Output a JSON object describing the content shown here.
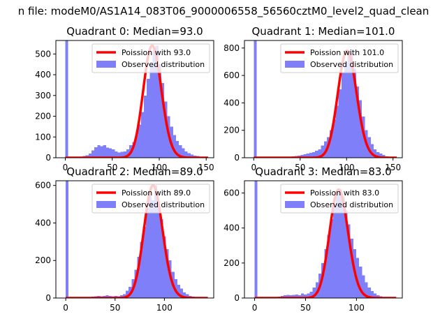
{
  "figure": {
    "suptitle": "n file: modeM0/AS1A14_083T06_9000006558_56560cztM0_level2_quad_clean"
  },
  "colors": {
    "hist": "#7f7ff9",
    "poisson": "#ff0000",
    "frame": "#000000"
  },
  "chart_data": [
    {
      "type": "bar",
      "title": "Quadrant 0: Median=93.0",
      "legend": [
        "Poission with 93.0",
        "Observed distribution"
      ],
      "legend_loc": "upper right",
      "xlim": [
        -10,
        158
      ],
      "ylim": [
        0,
        565
      ],
      "xticks": [
        0,
        50,
        100,
        150
      ],
      "yticks": [
        0,
        100,
        200,
        300,
        400,
        500
      ],
      "bin_width": 3.1,
      "hist_x": [
        0,
        3.1,
        6.2,
        9.3,
        12.4,
        15.5,
        18.6,
        21.7,
        24.8,
        27.9,
        31,
        34.1,
        37.2,
        40.3,
        43.4,
        46.5,
        49.6,
        52.7,
        55.8,
        58.9,
        62,
        65.1,
        68.2,
        71.3,
        74.4,
        77.5,
        80.6,
        83.7,
        86.8,
        89.9,
        93,
        96.1,
        99.2,
        102.3,
        105.4,
        108.5,
        111.6,
        114.7,
        117.8,
        120.9,
        124,
        127.1,
        130.2,
        133.3,
        136.4,
        139.5,
        142.6,
        145.7,
        148.8
      ],
      "hist_y": [
        565,
        3,
        3,
        3,
        5,
        5,
        8,
        12,
        20,
        35,
        50,
        60,
        55,
        60,
        48,
        45,
        40,
        30,
        25,
        28,
        30,
        40,
        60,
        75,
        110,
        160,
        220,
        300,
        380,
        450,
        520,
        540,
        450,
        360,
        270,
        200,
        150,
        110,
        80,
        60,
        45,
        30,
        22,
        15,
        10,
        8,
        5,
        4,
        3
      ],
      "poisson_mean": 93.0
    },
    {
      "type": "bar",
      "title": "Quadrant 1: Median=101.0",
      "legend": [
        "Poission with 101.0",
        "Observed distribution"
      ],
      "legend_loc": "upper right",
      "xlim": [
        -10,
        160
      ],
      "ylim": [
        0,
        855
      ],
      "xticks": [
        0,
        50,
        100,
        150
      ],
      "yticks": [
        0,
        200,
        400,
        600,
        800
      ],
      "bin_width": 3.15,
      "hist_x": [
        0,
        3.15,
        6.3,
        9.45,
        12.6,
        15.75,
        18.9,
        22.05,
        25.2,
        28.35,
        31.5,
        34.65,
        37.8,
        40.95,
        44.1,
        47.25,
        50.4,
        53.55,
        56.7,
        59.85,
        63,
        66.15,
        69.3,
        72.45,
        75.6,
        78.75,
        81.9,
        85.05,
        88.2,
        91.35,
        94.5,
        97.65,
        100.8,
        103.95,
        107.1,
        110.25,
        113.4,
        116.55,
        119.7,
        122.85,
        126,
        129.15,
        132.3,
        135.45,
        138.6,
        141.75,
        144.9,
        148.05,
        151.2
      ],
      "hist_y": [
        855,
        3,
        3,
        3,
        3,
        3,
        4,
        4,
        5,
        5,
        6,
        6,
        8,
        10,
        12,
        15,
        20,
        25,
        30,
        35,
        40,
        50,
        60,
        90,
        120,
        150,
        200,
        280,
        380,
        500,
        620,
        700,
        780,
        760,
        650,
        520,
        420,
        300,
        200,
        150,
        100,
        60,
        40,
        30,
        20,
        10,
        6,
        4,
        3
      ],
      "poisson_mean": 101.0
    },
    {
      "type": "bar",
      "title": "Quadrant 2: Median=89.0",
      "legend": [
        "Poission with 89.0",
        "Observed distribution"
      ],
      "legend_loc": "upper right",
      "xlim": [
        -10,
        150
      ],
      "ylim": [
        0,
        625
      ],
      "xticks": [
        0,
        50,
        100
      ],
      "yticks": [
        0,
        200,
        400,
        600
      ],
      "bin_width": 2.9,
      "hist_x": [
        0,
        2.9,
        5.8,
        8.7,
        11.6,
        14.5,
        17.4,
        20.3,
        23.2,
        26.1,
        29,
        31.9,
        34.8,
        37.7,
        40.6,
        43.5,
        46.4,
        49.3,
        52.2,
        55.1,
        58,
        60.9,
        63.8,
        66.7,
        69.6,
        72.5,
        75.4,
        78.3,
        81.2,
        84.1,
        87,
        89.9,
        92.8,
        95.7,
        98.6,
        101.5,
        104.4,
        107.3,
        110.2,
        113.1,
        116,
        118.9,
        121.8,
        124.7,
        127.6,
        130.5,
        133.4,
        136.3,
        139.2
      ],
      "hist_y": [
        625,
        2,
        2,
        2,
        3,
        3,
        4,
        5,
        6,
        8,
        10,
        12,
        10,
        12,
        15,
        12,
        10,
        12,
        10,
        15,
        20,
        40,
        60,
        100,
        150,
        220,
        300,
        380,
        480,
        560,
        520,
        600,
        500,
        420,
        330,
        260,
        200,
        140,
        100,
        70,
        50,
        30,
        20,
        12,
        8,
        5,
        3,
        2,
        2
      ],
      "poisson_mean": 89.0
    },
    {
      "type": "bar",
      "title": "Quadrant 3: Median=83.0",
      "legend": [
        "Poission with 83.0",
        "Observed distribution"
      ],
      "legend_loc": "upper right",
      "xlim": [
        -10,
        145
      ],
      "ylim": [
        0,
        670
      ],
      "xticks": [
        0,
        50,
        100
      ],
      "yticks": [
        0,
        200,
        400,
        600
      ],
      "bin_width": 2.85,
      "hist_x": [
        0,
        2.85,
        5.7,
        8.55,
        11.4,
        14.25,
        17.1,
        19.95,
        22.8,
        25.65,
        28.5,
        31.35,
        34.2,
        37.05,
        39.9,
        42.75,
        45.6,
        48.45,
        51.3,
        54.15,
        57,
        59.85,
        62.7,
        65.55,
        68.4,
        71.25,
        74.1,
        76.95,
        79.8,
        82.65,
        85.5,
        88.35,
        91.2,
        94.05,
        96.9,
        99.75,
        102.6,
        105.45,
        108.3,
        111.15,
        114,
        116.85,
        119.7,
        122.55,
        125.4,
        128.25,
        131.1,
        133.95
      ],
      "hist_y": [
        670,
        2,
        2,
        2,
        3,
        3,
        4,
        5,
        8,
        12,
        15,
        18,
        15,
        18,
        20,
        15,
        25,
        20,
        25,
        35,
        60,
        90,
        140,
        200,
        280,
        360,
        450,
        530,
        600,
        620,
        580,
        500,
        420,
        340,
        280,
        230,
        180,
        130,
        90,
        60,
        40,
        25,
        15,
        10,
        6,
        4,
        3,
        2
      ],
      "poisson_mean": 83.0
    }
  ]
}
